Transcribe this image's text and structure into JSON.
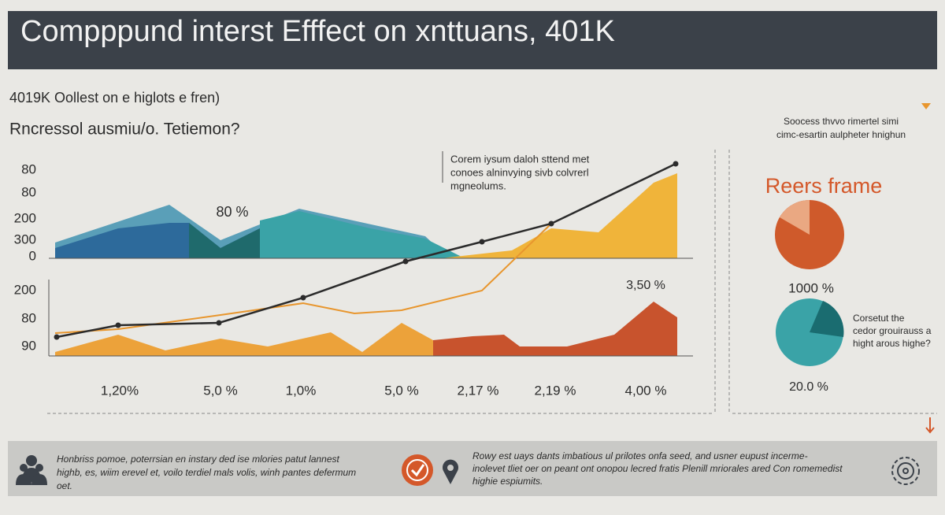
{
  "header": {
    "title": "Compppund interst Efffect on xnttuans, 401K"
  },
  "subtitles": [
    "4019K Oollest on e higlots e fren)",
    "Rncressol ausmiu/o. Tetiemon?"
  ],
  "upper_axis_labels": [
    "80",
    "80",
    "200",
    "300",
    "0"
  ],
  "lower_axis_labels": [
    "200",
    "80",
    "90"
  ],
  "annotation": [
    "Corem iysum daloh sttend met",
    "conoes alninvying sivb colvrerl",
    "mgneolums."
  ],
  "chart_labels": [
    "80 %",
    "3,50 %"
  ],
  "bottom_labels": [
    "1,20%",
    "5,0 %",
    "1,0%",
    "5,0 %",
    "2,17 %",
    "2,19 %",
    "4,00 %"
  ],
  "side_panel": {
    "intro": [
      "Soocess thvvo rimertel simi",
      "cimc-esartin aulpheter hnighun"
    ],
    "heading": "Reers frame",
    "pie1_label": "1000 %",
    "note": [
      "Corsetut the",
      "cedor grouirauss a",
      "hight arous highe?"
    ],
    "pie2_label": "20.0 %"
  },
  "footer": {
    "left": [
      "Honbriss pomoe, poterrsian en instary ded ise mlories patut lannest",
      "highb, es, wiim erevel et, voilo terdiel mals volis, winh pantes defermum",
      "oet."
    ],
    "right": [
      "Rowy est uays dants imbatious ul prilotes onfa seed, and usner eupust incerme-",
      "inolevet tliet oer on peant ont onopou lecred fratis Plenill mriorales ared Con romemedist",
      "highie espiumits."
    ]
  }
}
